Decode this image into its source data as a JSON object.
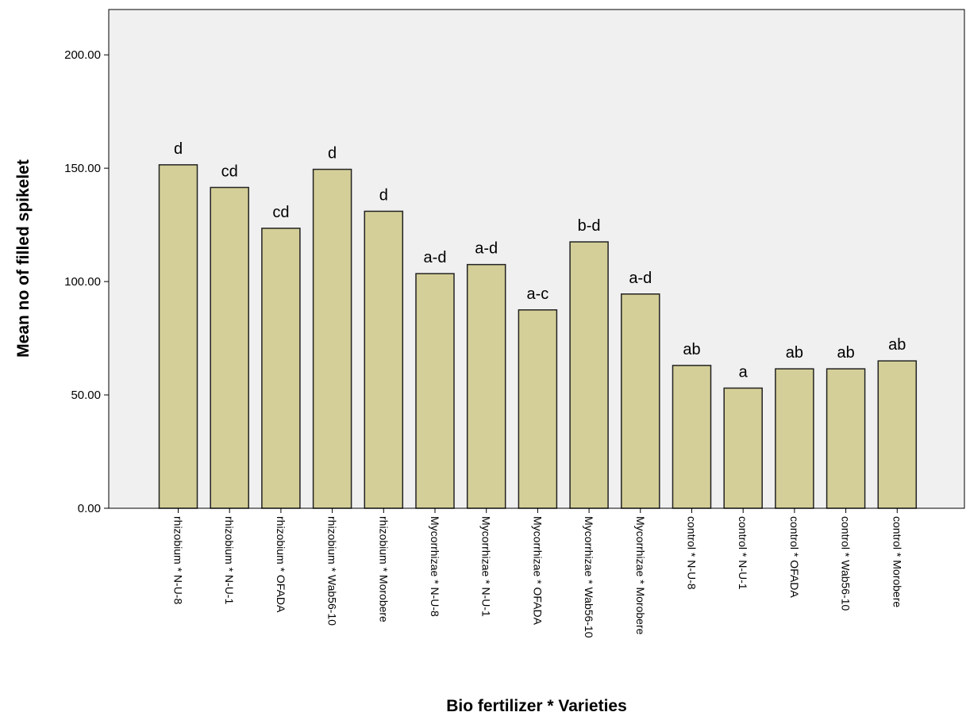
{
  "chart_data": {
    "type": "bar",
    "title": "",
    "xlabel": "Bio fertilizer * Varieties",
    "ylabel": "Mean no of filled spikelet",
    "ylim": [
      0,
      220
    ],
    "yticks": [
      "0.00",
      "50.00",
      "100.00",
      "150.00",
      "200.00"
    ],
    "grid": false,
    "categories": [
      "rhizobium * N-U-8",
      "rhizobium * N-U-1",
      "rhizobium * OFADA",
      "rhizobium * Wab56-10",
      "rhizobium * Morobere",
      "Mycorrhizae * N-U-8",
      "Mycorrhizae * N-U-1",
      "Mycorrhizae * OFADA",
      "Mycorrhizae * Wab56-10",
      "Mycorrhizae * Morobere",
      "control * N-U-8",
      "control * N-U-1",
      "control * OFADA",
      "control * Wab56-10",
      "control * Morobere"
    ],
    "values": [
      151.5,
      141.5,
      123.5,
      149.5,
      131,
      103.5,
      107.5,
      87.5,
      117.5,
      94.5,
      63,
      53,
      61.5,
      61.5,
      65
    ],
    "labels": [
      "d",
      "cd",
      "cd",
      "d",
      "d",
      "a-d",
      "a-d",
      "a-c",
      "b-d",
      "a-d",
      "ab",
      "a",
      "ab",
      "ab",
      "ab"
    ],
    "colors": {
      "bar_fill": "#d4cf98",
      "bar_stroke": "#222222",
      "plot_bg": "#f0f0f0",
      "axis": "#000000"
    }
  }
}
